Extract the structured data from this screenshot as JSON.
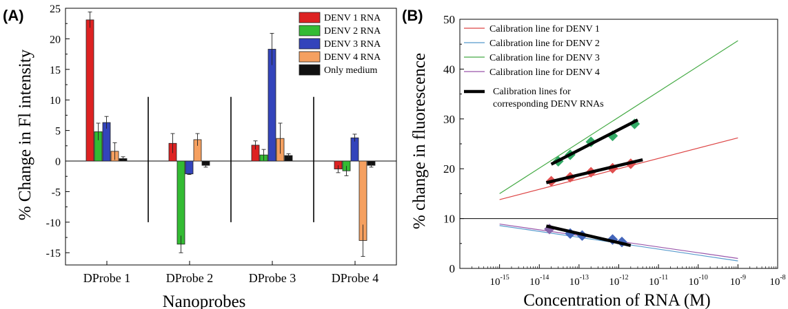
{
  "chart_data": [
    {
      "panel": "(A)",
      "type": "bar",
      "xlabel": "Nanoprobes",
      "ylabel": "% Change in Fl intensity",
      "ylim": [
        -17,
        25
      ],
      "yticks": [
        -15,
        -10,
        -5,
        0,
        5,
        10,
        15,
        20,
        25
      ],
      "categories": [
        "DProbe 1",
        "DProbe 2",
        "DProbe 3",
        "DProbe 4"
      ],
      "series": [
        {
          "name": "DENV 1 RNA",
          "color": "#dd2222",
          "values": [
            23.1,
            2.9,
            2.6,
            -1.3
          ],
          "errors": [
            1.3,
            1.6,
            0.7,
            0.6
          ]
        },
        {
          "name": "DENV 2 RNA",
          "color": "#33bb33",
          "values": [
            4.8,
            -13.6,
            1.0,
            -1.6
          ],
          "errors": [
            1.4,
            1.4,
            0.9,
            0.8
          ]
        },
        {
          "name": "DENV 3 RNA",
          "color": "#3344bb",
          "values": [
            6.3,
            -2.1,
            18.3,
            3.8
          ],
          "errors": [
            1.0,
            0.1,
            2.6,
            0.6
          ]
        },
        {
          "name": "DENV 4 RNA",
          "color": "#f5a060",
          "values": [
            1.6,
            3.5,
            3.7,
            -13.0
          ],
          "errors": [
            1.4,
            1.0,
            2.5,
            2.6
          ]
        },
        {
          "name": "Only medium",
          "color": "#111111",
          "values": [
            0.4,
            -0.7,
            0.9,
            -0.7
          ],
          "errors": [
            0.3,
            0.3,
            0.3,
            0.3
          ]
        }
      ],
      "legend": "top-right",
      "separators": true
    },
    {
      "panel": "(B)",
      "type": "scatter",
      "xlabel": "Concentration of RNA (M)",
      "ylabel": "% change in fluorescence",
      "xscale": "log",
      "xlim": [
        1e-16,
        1e-08
      ],
      "ylim": [
        0,
        50
      ],
      "yticks": [
        0,
        10,
        20,
        30,
        40,
        50
      ],
      "xticks": [
        -15,
        -14,
        -13,
        -12,
        -11,
        -10,
        -9,
        -8
      ],
      "reference_line_y": 10,
      "legend": "top-left",
      "calibration_lines": [
        {
          "name": "Calibration line for DENV 1",
          "color": "#dd4444",
          "x": [
            1e-15,
            1e-09
          ],
          "y": [
            13.8,
            26.2
          ]
        },
        {
          "name": "Calibration line for DENV 2",
          "color": "#5599cc",
          "x": [
            1e-15,
            1e-09
          ],
          "y": [
            8.6,
            1.5
          ]
        },
        {
          "name": "Calibration line for DENV 3",
          "color": "#44aa44",
          "x": [
            1e-15,
            1e-09
          ],
          "y": [
            15.0,
            45.7
          ]
        },
        {
          "name": "Calibration line for DENV 4",
          "color": "#9955aa",
          "x": [
            1e-15,
            1e-09
          ],
          "y": [
            8.9,
            2.0
          ]
        }
      ],
      "fit_lines": {
        "name": "Calibration lines for corresponding DENV RNAs",
        "color": "#000000",
        "lines": [
          {
            "x": [
              2e-14,
              3e-12
            ],
            "y": [
              20.9,
              29.8
            ]
          },
          {
            "x": [
              1.5e-14,
              4e-12
            ],
            "y": [
              17.2,
              21.8
            ]
          },
          {
            "x": [
              1.5e-14,
              2e-12
            ],
            "y": [
              8.5,
              4.6
            ]
          }
        ]
      },
      "points": [
        {
          "name": "DENV 3 RNA",
          "color": "#33aa66",
          "x": [
            3e-14,
            6e-14,
            2e-13,
            7e-13,
            2.5e-12
          ],
          "y": [
            21.5,
            22.8,
            25.4,
            26.6,
            29.0
          ]
        },
        {
          "name": "DENV 1 RNA",
          "color": "#e05050",
          "x": [
            2e-14,
            6e-14,
            2e-13,
            7e-13,
            2e-12
          ],
          "y": [
            17.5,
            18.3,
            19.3,
            20.1,
            21.0
          ]
        },
        {
          "name": "DENV 4 RNA",
          "color": "#8866aa",
          "x": [
            1.8e-14
          ],
          "y": [
            7.9
          ]
        },
        {
          "name": "DENV 2 RNA",
          "color": "#4466bb",
          "x": [
            6e-14,
            1.2e-13,
            7e-13,
            1.2e-12
          ],
          "y": [
            7.0,
            6.6,
            5.8,
            5.3
          ]
        }
      ]
    }
  ]
}
